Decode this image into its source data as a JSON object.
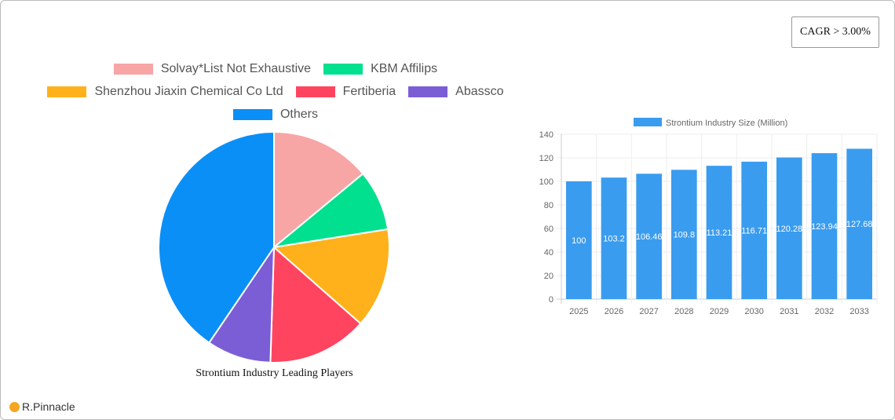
{
  "cagr_label": "CAGR > 3.00%",
  "brand": "R.Pinnacle",
  "chart_data": [
    {
      "type": "pie",
      "title": "Strontium Industry Leading Players",
      "legend_placement": "top",
      "labels": [
        "Solvay*List Not Exhaustive",
        "KBM Affilips",
        "Shenzhou Jiaxin Chemical Co  Ltd",
        "Fertiberia",
        "Abassco",
        "Others"
      ],
      "values": [
        14,
        8.5,
        14,
        14,
        9,
        40.5
      ],
      "colors": [
        "#f8a5a5",
        "#00e08f",
        "#ffb11b",
        "#ff4460",
        "#7b5ed6",
        "#0a8ff7"
      ]
    },
    {
      "type": "bar",
      "title": "",
      "legend": [
        "Strontium Industry Size (Million)"
      ],
      "categories": [
        "2025",
        "2026",
        "2027",
        "2028",
        "2029",
        "2030",
        "2031",
        "2032",
        "2033"
      ],
      "values": [
        100,
        103.2,
        106.46,
        109.8,
        113.21,
        116.71,
        120.28,
        123.94,
        127.68
      ],
      "ylim": [
        0,
        140
      ],
      "yticks": [
        0,
        20,
        40,
        60,
        80,
        100,
        120,
        140
      ],
      "grid": true,
      "color": "#3a9cef"
    }
  ]
}
